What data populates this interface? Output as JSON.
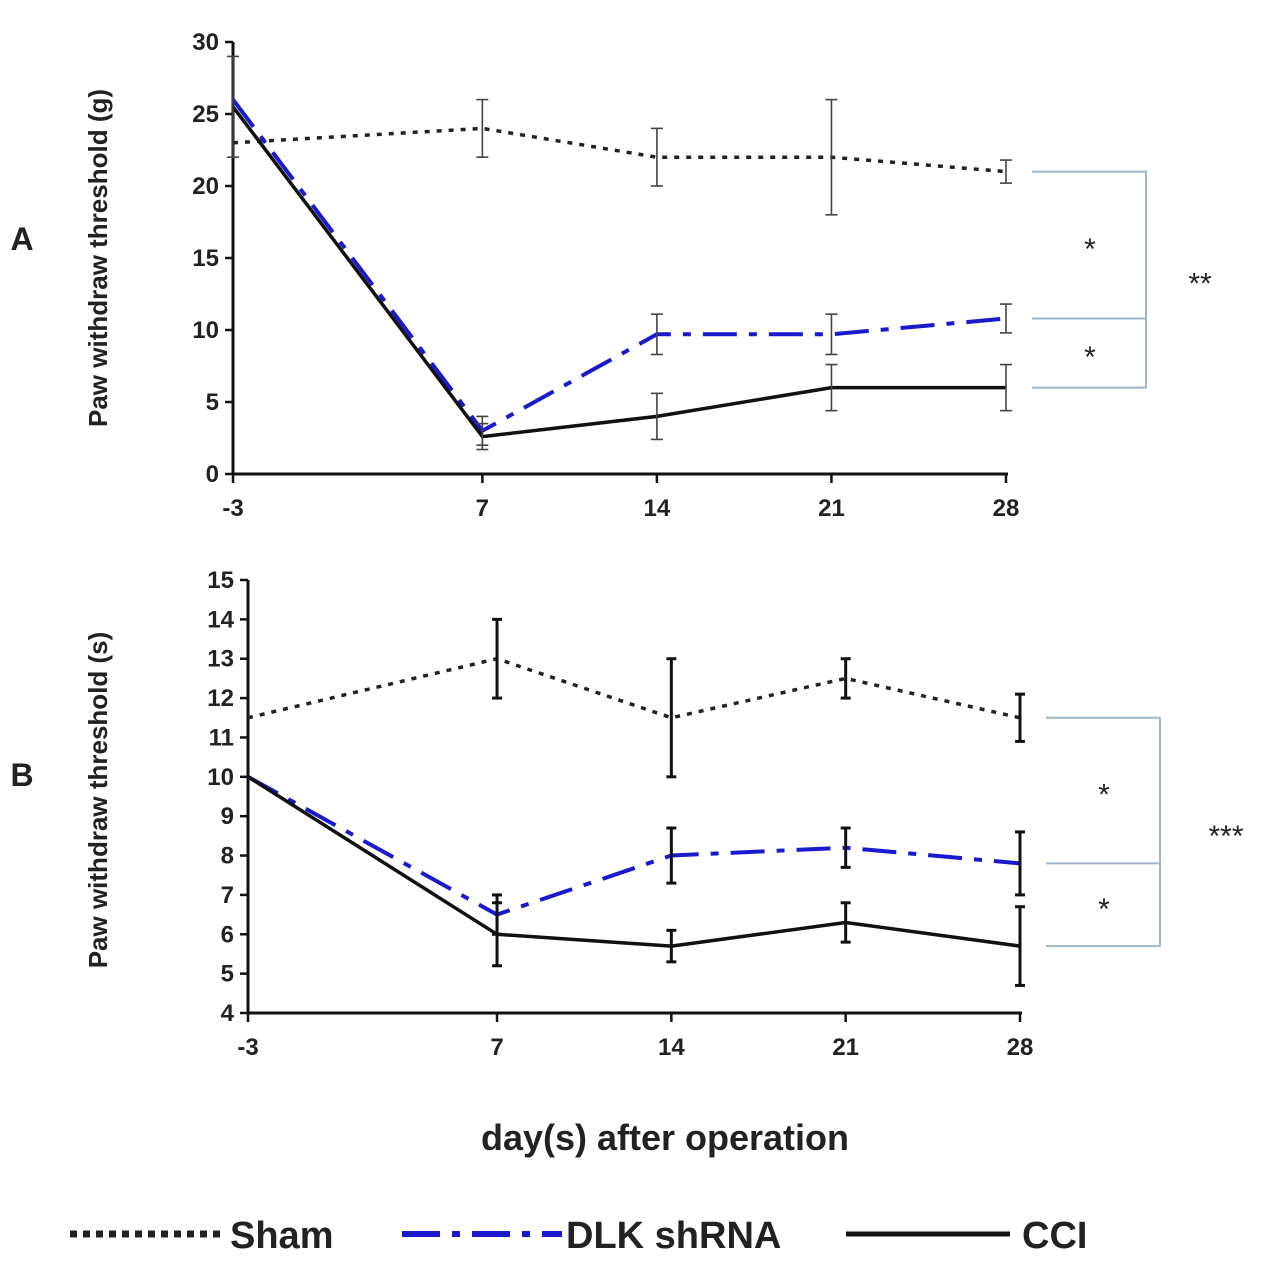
{
  "x_axis_label": "day(s) after operation",
  "colors": {
    "Sham": "#222222",
    "DLK shRNA": "#1a1acc",
    "CCI": "#111111",
    "bracket": "#9fb6cc"
  },
  "legend": [
    {
      "label": "Sham",
      "style": "dotted"
    },
    {
      "label": "DLK shRNA",
      "style": "dashdot"
    },
    {
      "label": "CCI",
      "style": "solid"
    }
  ],
  "chart_data": [
    {
      "panel": "A",
      "type": "line",
      "title": "",
      "xlabel": "day(s) after operation",
      "ylabel": "Paw withdraw threshold (g)",
      "x": [
        -3,
        7,
        14,
        21,
        28
      ],
      "x_tick_labels": [
        "-3",
        "7",
        "14",
        "21",
        "28"
      ],
      "ylim": [
        0,
        30
      ],
      "y_ticks": [
        0,
        5,
        10,
        15,
        20,
        25,
        30
      ],
      "series": [
        {
          "name": "Sham",
          "values": [
            23,
            24,
            22,
            22,
            21
          ],
          "errors": [
            0,
            2,
            2,
            4,
            0.8
          ]
        },
        {
          "name": "DLK shRNA",
          "values": [
            26,
            3,
            9.7,
            9.7,
            10.8
          ],
          "errors": [
            0,
            1,
            1.4,
            1.4,
            1
          ]
        },
        {
          "name": "CCI",
          "values": [
            25.5,
            2.6,
            4,
            6,
            6
          ],
          "errors": [
            3.5,
            0.9,
            1.6,
            1.6,
            1.6
          ]
        }
      ],
      "significance": [
        {
          "between": [
            "Sham",
            "DLK shRNA"
          ],
          "label": "*"
        },
        {
          "between": [
            "DLK shRNA",
            "CCI"
          ],
          "label": "*"
        },
        {
          "between": [
            "Sham",
            "CCI"
          ],
          "label": "**"
        }
      ]
    },
    {
      "panel": "B",
      "type": "line",
      "title": "",
      "xlabel": "day(s) after operation",
      "ylabel": "Paw withdraw threshold (s)",
      "x": [
        -3,
        7,
        14,
        21,
        28
      ],
      "x_tick_labels": [
        "-3",
        "7",
        "14",
        "21",
        "28"
      ],
      "ylim": [
        4,
        15
      ],
      "y_ticks": [
        4,
        5,
        6,
        7,
        8,
        9,
        10,
        11,
        12,
        13,
        14,
        15
      ],
      "series": [
        {
          "name": "Sham",
          "values": [
            11.5,
            13,
            11.5,
            12.5,
            11.5
          ],
          "errors": [
            0,
            1,
            1.5,
            0.5,
            0.6
          ]
        },
        {
          "name": "DLK shRNA",
          "values": [
            10,
            6.5,
            8,
            8.2,
            7.8
          ],
          "errors": [
            0,
            0.5,
            0.7,
            0.5,
            0.8
          ]
        },
        {
          "name": "CCI",
          "values": [
            10,
            6,
            5.7,
            6.3,
            5.7
          ],
          "errors": [
            0,
            0.8,
            0.4,
            0.5,
            1
          ]
        }
      ],
      "significance": [
        {
          "between": [
            "Sham",
            "DLK shRNA"
          ],
          "label": "*"
        },
        {
          "between": [
            "DLK shRNA",
            "CCI"
          ],
          "label": "*"
        },
        {
          "between": [
            "Sham",
            "CCI"
          ],
          "label": "***"
        }
      ]
    }
  ]
}
